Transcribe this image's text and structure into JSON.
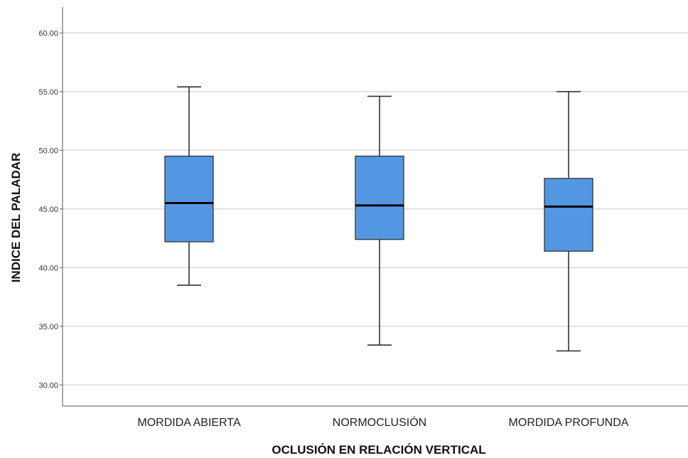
{
  "chart_data": {
    "type": "boxplot",
    "title": "",
    "xlabel": "OCLUSIÓN EN RELACIÓN VERTICAL",
    "ylabel": "INDICE DEL PALADAR",
    "ylim": [
      28.2,
      62.2
    ],
    "yticks": [
      "30.00",
      "35.00",
      "40.00",
      "45.00",
      "50.00",
      "55.00",
      "60.00"
    ],
    "grid": "horizontal",
    "categories": [
      "MORDIDA ABIERTA",
      "NORMOCLUSIÓN",
      "MORDIDA PROFUNDA"
    ],
    "boxes": [
      {
        "category": "MORDIDA ABIERTA",
        "whisker_low": 38.5,
        "q1": 42.2,
        "median": 45.5,
        "q3": 49.5,
        "whisker_high": 55.4
      },
      {
        "category": "NORMOCLUSIÓN",
        "whisker_low": 33.4,
        "q1": 42.4,
        "median": 45.3,
        "q3": 49.5,
        "whisker_high": 54.6
      },
      {
        "category": "MORDIDA PROFUNDA",
        "whisker_low": 32.9,
        "q1": 41.4,
        "median": 45.2,
        "q3": 47.6,
        "whisker_high": 55.0
      }
    ],
    "colors": {
      "box_fill": "#5397e3",
      "box_stroke": "#333333",
      "gridline": "#d9d9d9",
      "median": "#000000"
    }
  }
}
